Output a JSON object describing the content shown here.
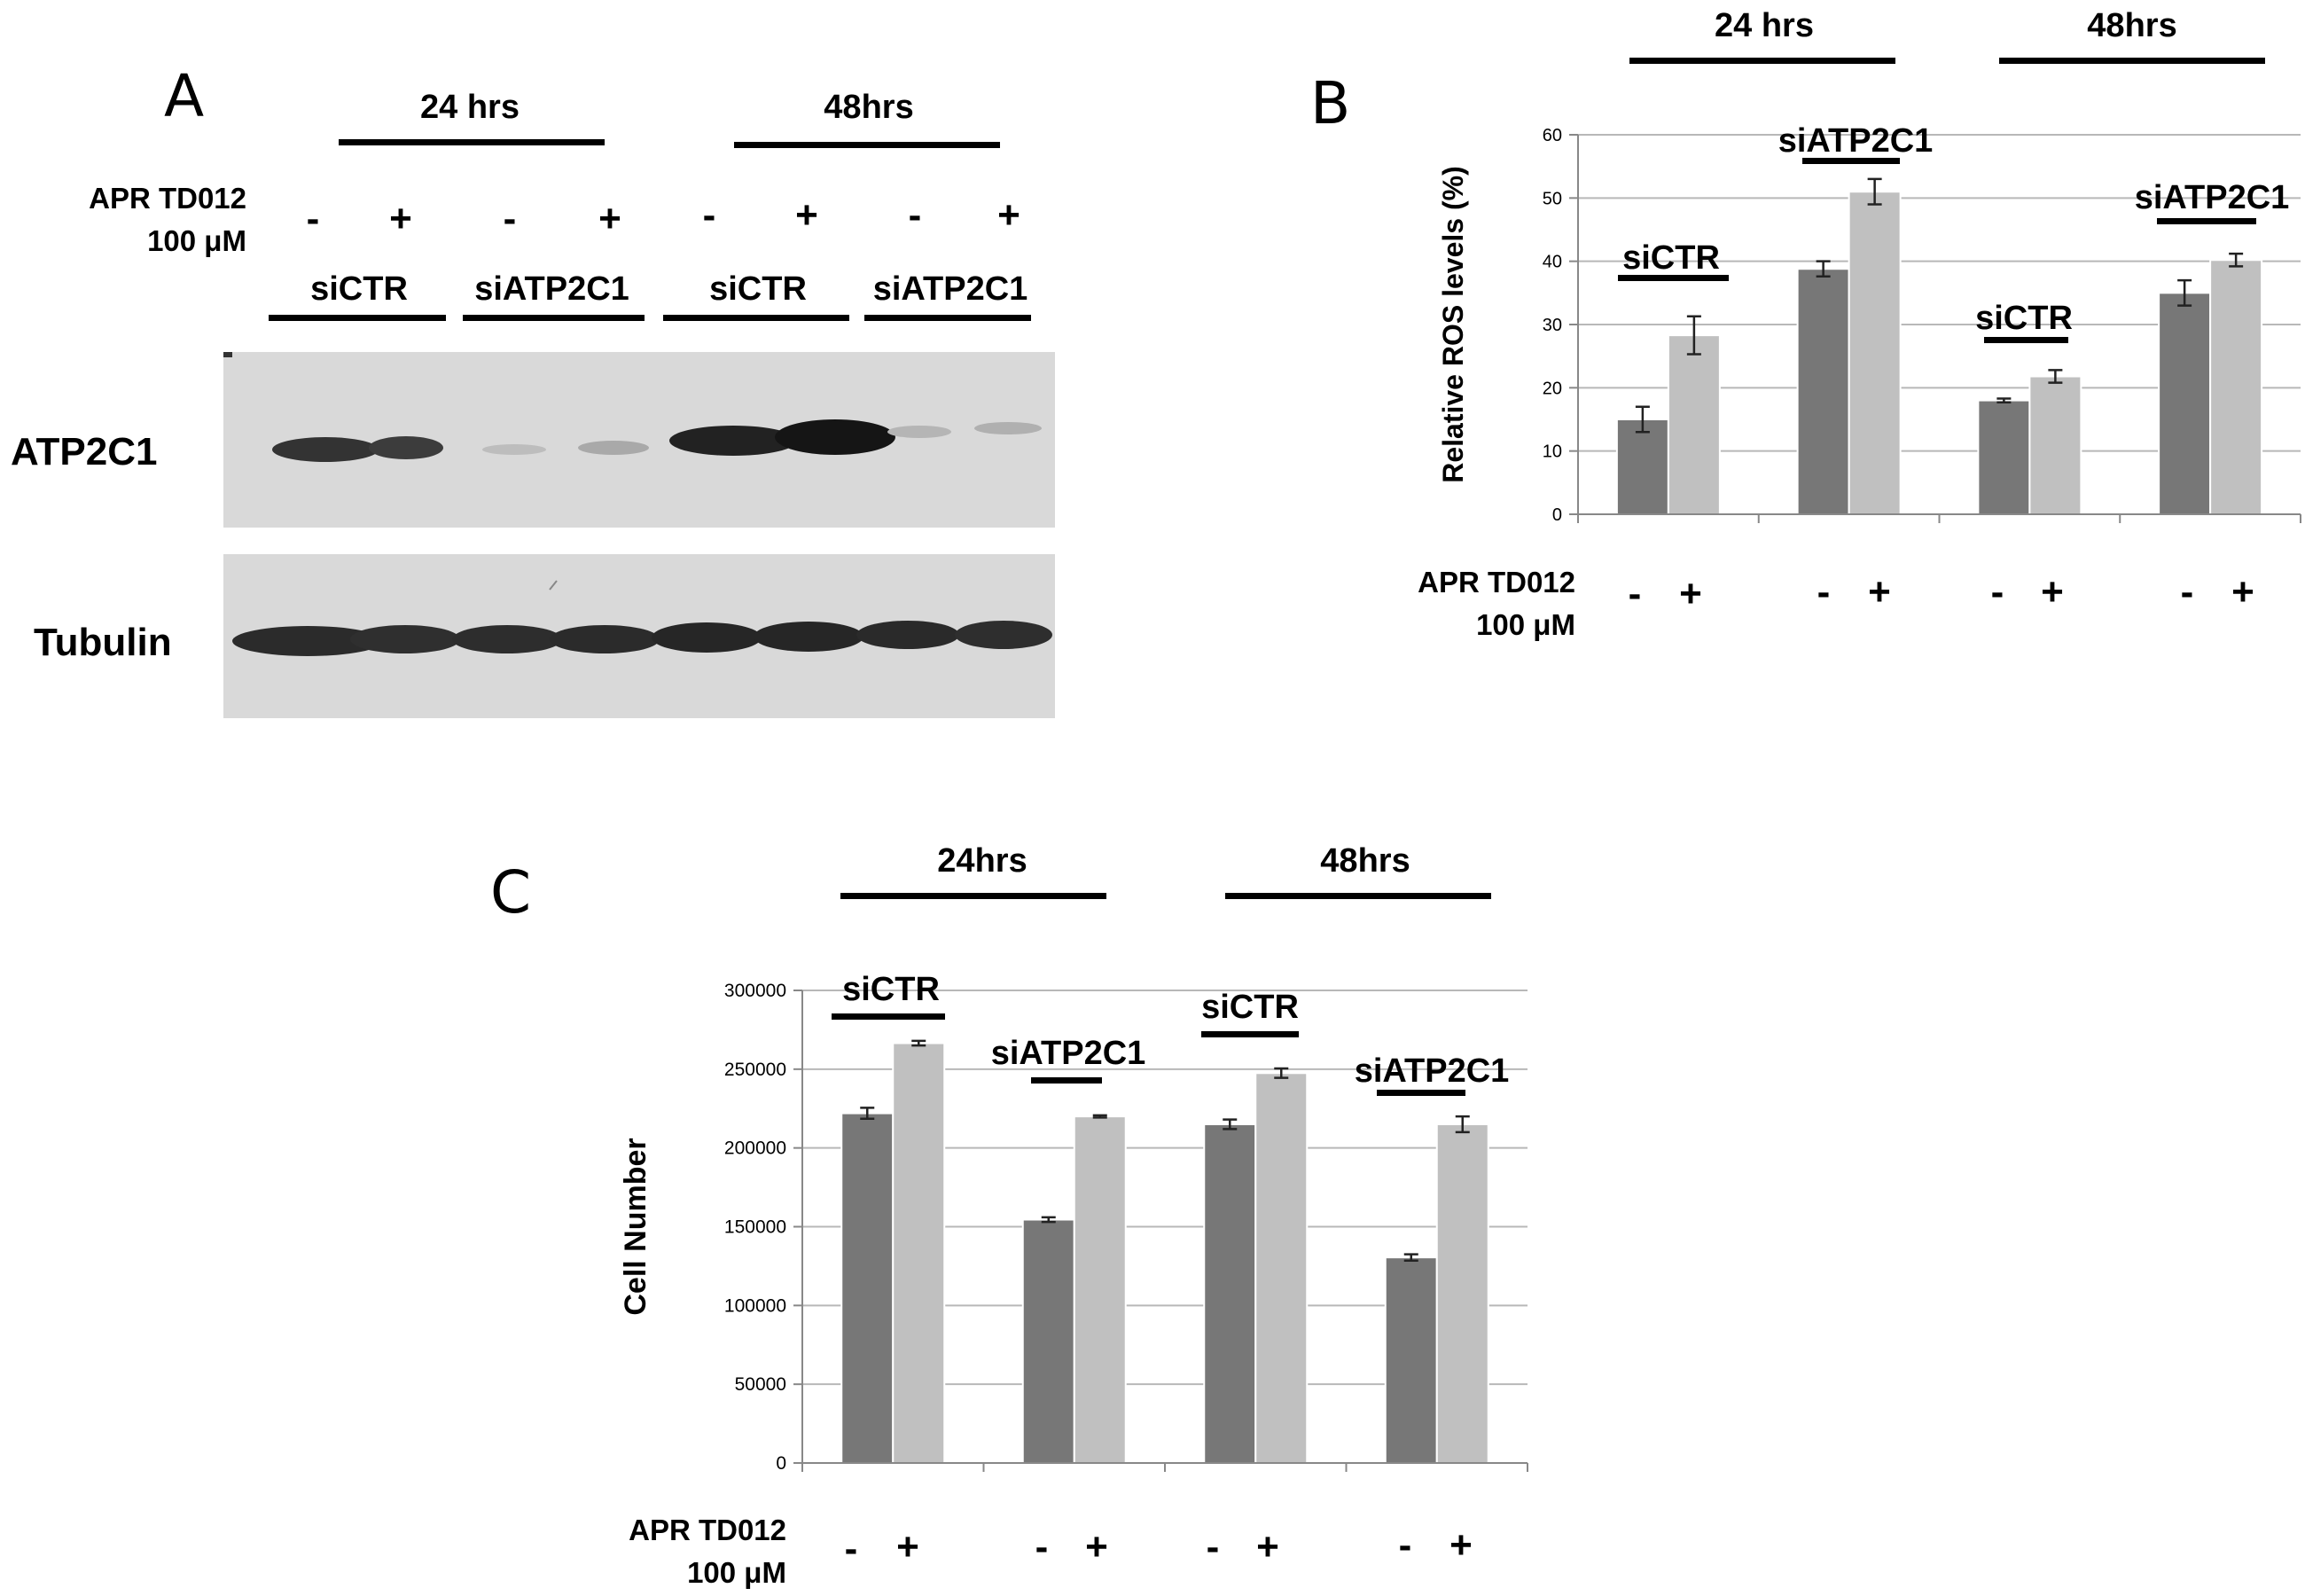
{
  "panel_a": {
    "letter": "A",
    "time_headers": [
      "24 hrs",
      "48hrs"
    ],
    "treatment_label_line1": "APR TD012",
    "treatment_label_line2": "100 μM",
    "signs": [
      "-",
      "+",
      "-",
      "+",
      "-",
      "+",
      "-",
      "+"
    ],
    "groups": [
      "siCTR",
      "siATP2C1",
      "siCTR",
      "siATP2C1"
    ],
    "row_labels": [
      "ATP2C1",
      "Tubulin"
    ]
  },
  "panel_b": {
    "letter": "B",
    "time_headers": [
      "24 hrs",
      "48hrs"
    ],
    "group_labels": [
      "siCTR",
      "siATP2C1",
      "siCTR",
      "siATP2C1"
    ],
    "treatment_label_line1": "APR TD012",
    "treatment_label_line2": "100 μM",
    "signs": [
      "-",
      "+",
      "-",
      "+",
      "-",
      "+",
      "-",
      "+"
    ]
  },
  "panel_c": {
    "letter": "C",
    "time_headers": [
      "24hrs",
      "48hrs"
    ],
    "group_labels": [
      "siCTR",
      "siATP2C1",
      "siCTR",
      "siATP2C1"
    ],
    "treatment_label_line1": "APR TD012",
    "treatment_label_line2": "100 μM",
    "signs": [
      "-",
      "+",
      "-",
      "+",
      "-",
      "+",
      "-",
      "+"
    ]
  },
  "chart_data": [
    {
      "type": "bar",
      "panel": "B",
      "ylabel": "Relative ROS levels (%)",
      "ylim": [
        0,
        60
      ],
      "yticks": [
        0,
        10,
        20,
        30,
        40,
        50,
        60
      ],
      "categories": [
        "siCTR 24 hrs",
        "siATP2C1 24 hrs",
        "siCTR 48hrs",
        "siATP2C1 48hrs"
      ],
      "series": [
        {
          "values": [
            15,
            38.8,
            18,
            35
          ],
          "errors": [
            2,
            1.2,
            0.3,
            2
          ],
          "color": "#777777"
        },
        {
          "values": [
            28.3,
            51,
            21.8,
            40.2
          ],
          "errors": [
            3,
            2,
            1,
            1
          ],
          "color": "#c0c0c0"
        }
      ],
      "grid": true
    },
    {
      "type": "bar",
      "panel": "C",
      "ylabel": "Cell Number",
      "ylim": [
        0,
        300000
      ],
      "yticks": [
        0,
        50000,
        100000,
        150000,
        200000,
        250000,
        300000
      ],
      "categories": [
        "siCTR 24hrs",
        "siATP2C1 24hrs",
        "siCTR 48hrs",
        "siATP2C1 48hrs"
      ],
      "series": [
        {
          "values": [
            222000,
            154500,
            215000,
            130500
          ],
          "errors": [
            3500,
            1500,
            3000,
            2000
          ],
          "color": "#777777"
        },
        {
          "values": [
            266500,
            220000,
            247500,
            215000
          ],
          "errors": [
            1500,
            700,
            3000,
            5000
          ],
          "color": "#c0c0c0"
        }
      ],
      "grid": true
    }
  ]
}
